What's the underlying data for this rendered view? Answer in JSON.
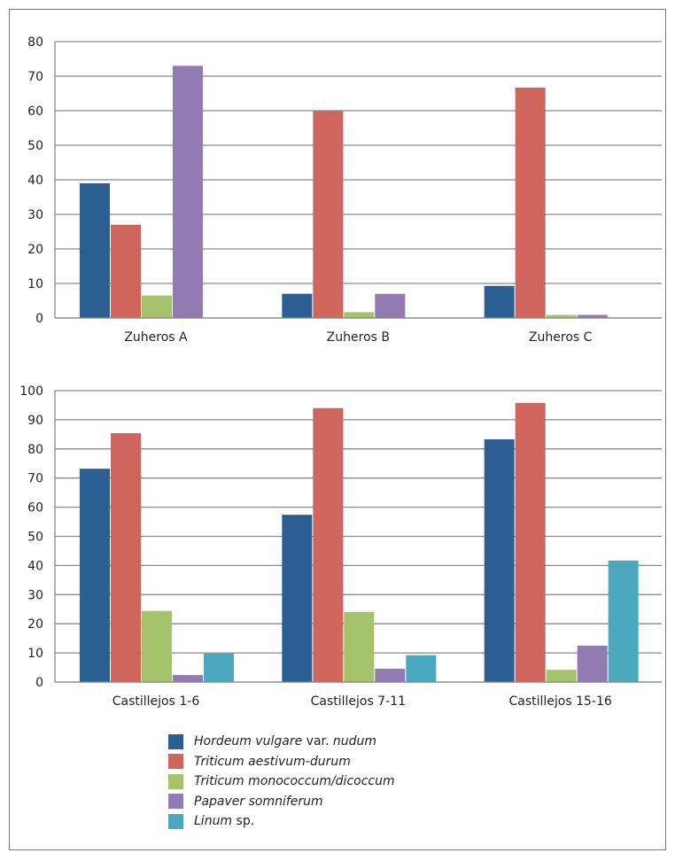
{
  "colors": {
    "Hordeum vulgare var. nudum": "#2b5e92",
    "Triticum aestivum-durum": "#cf655c",
    "Triticum monococcum/dicoccum": "#a4c36a",
    "Papaver somniferum": "#927ab2",
    "Linum sp.": "#4ba8bf"
  },
  "legend": [
    {
      "parts": [
        {
          "text": "Hordeum vulgare",
          "italic": true
        },
        {
          "text": " var. ",
          "italic": false
        },
        {
          "text": "nudum",
          "italic": true
        }
      ]
    },
    {
      "parts": [
        {
          "text": "Triticum aestivum-durum",
          "italic": true
        }
      ]
    },
    {
      "parts": [
        {
          "text": "Triticum monococcum/dicoccum",
          "italic": true
        }
      ]
    },
    {
      "parts": [
        {
          "text": "Papaver somniferum",
          "italic": true
        }
      ]
    },
    {
      "parts": [
        {
          "text": "Linum",
          "italic": true
        },
        {
          "text": " sp.",
          "italic": false
        }
      ]
    }
  ],
  "chart_data": [
    {
      "type": "bar",
      "categories": [
        "Zuheros A",
        "Zuheros B",
        "Zuheros C"
      ],
      "ylim": [
        0,
        80
      ],
      "yticks": [
        0,
        10,
        20,
        30,
        40,
        50,
        60,
        70,
        80
      ],
      "grid": true,
      "legend_position": "bottom",
      "series": [
        {
          "name": "Hordeum vulgare var. nudum",
          "values": [
            39,
            7,
            9.3
          ]
        },
        {
          "name": "Triticum aestivum-durum",
          "values": [
            27,
            60,
            66.7
          ]
        },
        {
          "name": "Triticum monococcum/dicoccum",
          "values": [
            6.5,
            1.7,
            0.9
          ]
        },
        {
          "name": "Papaver somniferum",
          "values": [
            73,
            7,
            0.9
          ]
        },
        {
          "name": "Linum sp.",
          "values": [
            0,
            0,
            0
          ]
        }
      ]
    },
    {
      "type": "bar",
      "categories": [
        "Castillejos 1-6",
        "Castillejos 7-11",
        "Castillejos 15-16"
      ],
      "ylim": [
        0,
        100
      ],
      "yticks": [
        0,
        10,
        20,
        30,
        40,
        50,
        60,
        70,
        80,
        90,
        100
      ],
      "grid": true,
      "legend_position": "bottom",
      "series": [
        {
          "name": "Hordeum vulgare var. nudum",
          "values": [
            73.2,
            57.4,
            83.3
          ]
        },
        {
          "name": "Triticum aestivum-durum",
          "values": [
            85.4,
            94,
            95.8
          ]
        },
        {
          "name": "Triticum monococcum/dicoccum",
          "values": [
            24.4,
            24.1,
            4.2
          ]
        },
        {
          "name": "Papaver somniferum",
          "values": [
            2.4,
            4.6,
            12.5
          ]
        },
        {
          "name": "Linum sp.",
          "values": [
            9.8,
            9.2,
            41.7
          ]
        }
      ]
    }
  ]
}
